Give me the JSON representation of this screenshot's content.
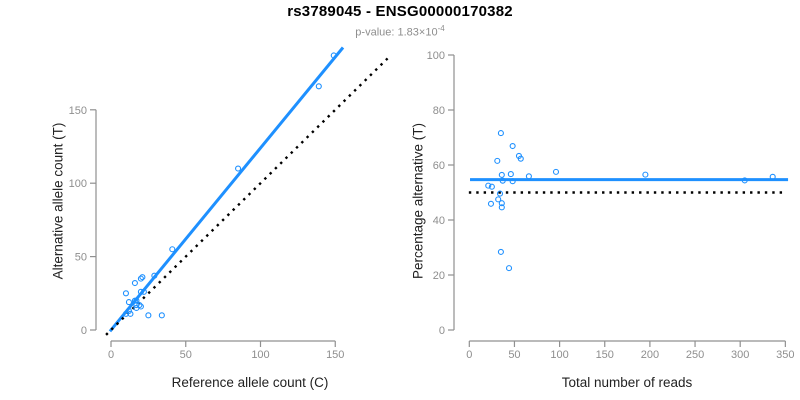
{
  "header": {
    "title": "rs3789045 - ENSG00000170382",
    "pvalue_prefix": "p-value: 1.83×10",
    "pvalue_exponent": "-4"
  },
  "colors": {
    "accent_blue": "#1E90FF",
    "axis_line_gray": "#909090",
    "tick_label_gray": "#8E8E8E",
    "axis_title_color": "#222222",
    "dotted_line_black": "#000000",
    "background": "#FFFFFF"
  },
  "chart_data": [
    {
      "type": "scatter",
      "title": "",
      "xlabel": "Reference allele count (C)",
      "ylabel": "Alternative allele count (T)",
      "xticks": [
        0,
        50,
        100,
        150
      ],
      "yticks": [
        0,
        50,
        100,
        150
      ],
      "xlim": [
        0,
        185
      ],
      "ylim": [
        0,
        192
      ],
      "grid": false,
      "marker": "open-circle",
      "x": [
        10,
        16,
        20,
        21,
        12,
        41,
        20,
        16,
        29,
        85,
        149,
        139,
        17,
        22,
        10,
        12,
        17,
        17,
        19,
        13,
        20,
        25,
        34
      ],
      "y": [
        25,
        32,
        35,
        36,
        19,
        55,
        26,
        20,
        37,
        110,
        187,
        166,
        20,
        26,
        11,
        13,
        17,
        15,
        17,
        11,
        16,
        10,
        10
      ],
      "regression_line": {
        "slope": 1.24,
        "intercept": 0,
        "style": "solid",
        "color": "#1E90FF"
      },
      "identity_line": {
        "slope": 1,
        "intercept": 0,
        "style": "dotted",
        "color": "#000000"
      }
    },
    {
      "type": "scatter",
      "title": "",
      "xlabel": "Total number of reads",
      "ylabel": "Percentage alternative (T)",
      "xticks": [
        0,
        50,
        100,
        150,
        200,
        250,
        300,
        350
      ],
      "yticks": [
        0,
        20,
        40,
        60,
        80,
        100
      ],
      "xlim": [
        0,
        352
      ],
      "ylim": [
        0,
        100
      ],
      "grid": false,
      "marker": "open-circle",
      "x": [
        35,
        48,
        55,
        57,
        31,
        96,
        46,
        36,
        66,
        195,
        336,
        305,
        37,
        48,
        21,
        25,
        34,
        32,
        36,
        24,
        36,
        35,
        44
      ],
      "y": [
        71.6,
        66.9,
        63.3,
        62.3,
        61.5,
        57.5,
        56.7,
        56.4,
        55.9,
        56.5,
        55.7,
        54.4,
        54.3,
        54.1,
        52.5,
        52.1,
        49.6,
        47.5,
        46.1,
        45.9,
        44.6,
        28.4,
        22.5
      ],
      "fit_line": {
        "y": 54.7,
        "style": "solid",
        "color": "#1E90FF"
      },
      "reference_line": {
        "y": 50,
        "style": "dotted",
        "color": "#000000"
      }
    }
  ]
}
